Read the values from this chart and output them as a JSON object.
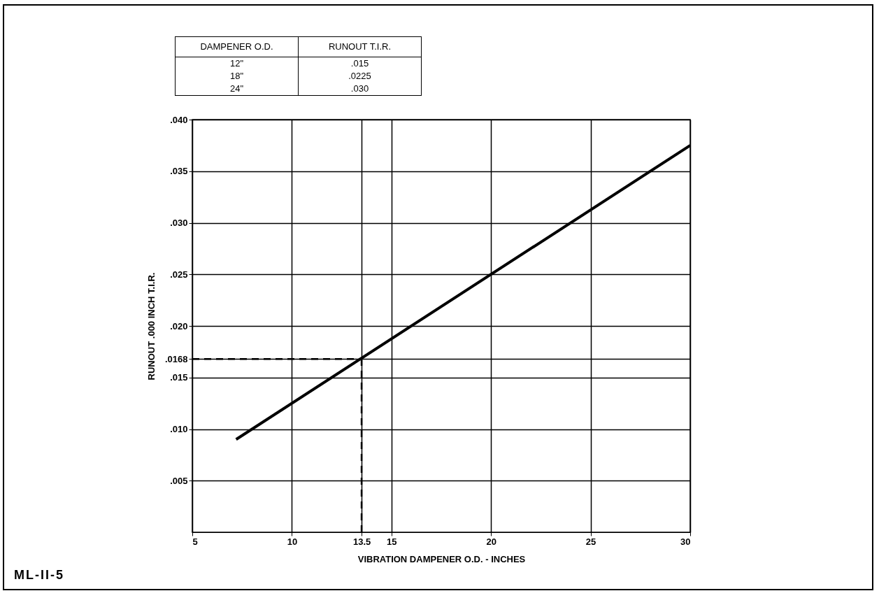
{
  "chart_data": {
    "type": "line",
    "xlabel": "VIBRATION DAMPENER O.D. - INCHES",
    "ylabel": "RUNOUT .000 INCH T.I.R.",
    "x": [
      7.2,
      30
    ],
    "series": [
      {
        "color": "#000000",
        "values": [
          0.009,
          0.0375
        ]
      }
    ],
    "xlim": [
      5,
      30
    ],
    "xticks": [
      5,
      10,
      {
        "value": 13.5,
        "label": "13.5"
      },
      15,
      20,
      25,
      30
    ],
    "ylim": [
      0,
      0.04
    ],
    "yticks": [
      {
        "value": 0.005,
        "label": ".005"
      },
      {
        "value": 0.01,
        "label": ".010"
      },
      {
        "value": 0.015,
        "label": ".015"
      },
      {
        "value": 0.0168,
        "label": ".0168"
      },
      {
        "value": 0.02,
        "label": ".020"
      },
      {
        "value": 0.025,
        "label": ".025"
      },
      {
        "value": 0.03,
        "label": ".030"
      },
      {
        "value": 0.035,
        "label": ".035"
      },
      {
        "value": 0.04,
        "label": ".040"
      }
    ],
    "ref_lines": [
      {
        "axis": "y",
        "value": 0.0168,
        "line_style": "dashed",
        "color": "#000000"
      },
      {
        "axis": "x",
        "value": 13.5,
        "line_style": "dashed",
        "color": "#000000"
      }
    ],
    "grid": true,
    "marker": "none",
    "line_style": "solid",
    "annotations": [
      "DAMPENER O.D.",
      "RUNOUT T.I.R.",
      "12\"",
      ".015",
      "18\"",
      ".0225",
      "24\"",
      ".030",
      "ML-II-5"
    ]
  }
}
